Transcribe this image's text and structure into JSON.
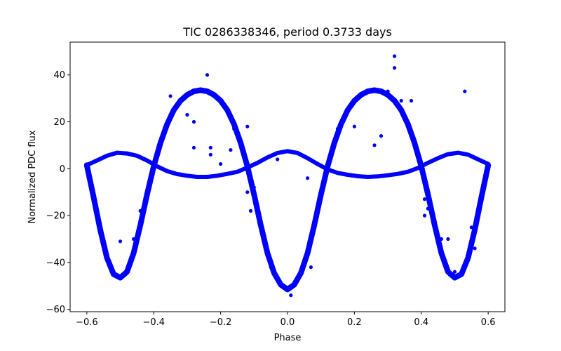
{
  "chart_data": {
    "type": "scatter",
    "title": "TIC 0286338346, period 0.3733 days",
    "xlabel": "Phase",
    "ylabel": "Normalized PDC flux",
    "xlim": [
      -0.65,
      0.65
    ],
    "ylim": [
      -61,
      54
    ],
    "xticks": [
      -0.6,
      -0.4,
      -0.2,
      0.0,
      0.2,
      0.4,
      0.6
    ],
    "xtick_labels": [
      "−0.6",
      "−0.4",
      "−0.2",
      "0.0",
      "0.2",
      "0.4",
      "0.6"
    ],
    "yticks": [
      -60,
      -40,
      -20,
      0,
      20,
      40
    ],
    "ytick_labels": [
      "−60",
      "−40",
      "−20",
      "0",
      "20",
      "40"
    ],
    "grid": false,
    "marker_color": "#0000ff",
    "series": [
      {
        "style": "dense-curve",
        "points": [
          [
            -0.6,
            1.5
          ],
          [
            -0.58,
            -12
          ],
          [
            -0.56,
            -26
          ],
          [
            -0.54,
            -38
          ],
          [
            -0.52,
            -45
          ],
          [
            -0.5,
            -46.5
          ],
          [
            -0.48,
            -44
          ],
          [
            -0.46,
            -36
          ],
          [
            -0.44,
            -24
          ],
          [
            -0.42,
            -11
          ],
          [
            -0.4,
            1
          ],
          [
            -0.38,
            11
          ],
          [
            -0.36,
            19
          ],
          [
            -0.34,
            25
          ],
          [
            -0.32,
            29
          ],
          [
            -0.3,
            31.5
          ],
          [
            -0.28,
            33
          ],
          [
            -0.26,
            33.5
          ],
          [
            -0.24,
            33
          ],
          [
            -0.22,
            31.5
          ],
          [
            -0.2,
            29
          ],
          [
            -0.18,
            25
          ],
          [
            -0.16,
            19
          ],
          [
            -0.14,
            11
          ],
          [
            -0.12,
            1
          ],
          [
            -0.1,
            -11
          ],
          [
            -0.08,
            -24
          ],
          [
            -0.06,
            -36
          ],
          [
            -0.04,
            -44.5
          ],
          [
            -0.02,
            -49.5
          ],
          [
            0.0,
            -51.5
          ],
          [
            0.02,
            -49.5
          ],
          [
            0.04,
            -44.5
          ],
          [
            0.06,
            -36
          ],
          [
            0.08,
            -24
          ],
          [
            0.1,
            -11
          ],
          [
            0.12,
            1
          ],
          [
            0.14,
            11
          ],
          [
            0.16,
            19
          ],
          [
            0.18,
            25
          ],
          [
            0.2,
            29
          ],
          [
            0.22,
            31.5
          ],
          [
            0.24,
            33
          ],
          [
            0.26,
            33.5
          ],
          [
            0.28,
            33
          ],
          [
            0.3,
            31.5
          ],
          [
            0.32,
            29
          ],
          [
            0.34,
            25
          ],
          [
            0.36,
            19
          ],
          [
            0.38,
            11
          ],
          [
            0.4,
            1
          ],
          [
            0.42,
            -11
          ],
          [
            0.44,
            -24
          ],
          [
            0.46,
            -36
          ],
          [
            0.48,
            -44
          ],
          [
            0.5,
            -46.5
          ],
          [
            0.52,
            -45
          ],
          [
            0.54,
            -38
          ],
          [
            0.56,
            -26
          ],
          [
            0.58,
            -12
          ],
          [
            0.6,
            1.5
          ]
        ]
      },
      {
        "style": "dense-curve",
        "points": [
          [
            -0.6,
            1.5
          ],
          [
            -0.57,
            3.5
          ],
          [
            -0.54,
            5.5
          ],
          [
            -0.51,
            6.8
          ],
          [
            -0.48,
            6.5
          ],
          [
            -0.45,
            5.5
          ],
          [
            -0.42,
            3.5
          ],
          [
            -0.39,
            1
          ],
          [
            -0.36,
            -1
          ],
          [
            -0.33,
            -2.3
          ],
          [
            -0.3,
            -3
          ],
          [
            -0.27,
            -3.5
          ],
          [
            -0.24,
            -3.5
          ],
          [
            -0.21,
            -3
          ],
          [
            -0.18,
            -2.2
          ],
          [
            -0.15,
            -1.3
          ],
          [
            -0.12,
            0.5
          ],
          [
            -0.09,
            2.5
          ],
          [
            -0.06,
            4.8
          ],
          [
            -0.03,
            6.7
          ],
          [
            0.0,
            7.5
          ],
          [
            0.03,
            6.7
          ],
          [
            0.06,
            4.5
          ],
          [
            0.09,
            2
          ],
          [
            0.12,
            -0.3
          ],
          [
            0.15,
            -1.8
          ],
          [
            0.18,
            -2.6
          ],
          [
            0.21,
            -3.2
          ],
          [
            0.24,
            -3.5
          ],
          [
            0.27,
            -3.3
          ],
          [
            0.3,
            -2.8
          ],
          [
            0.33,
            -2.2
          ],
          [
            0.36,
            -1.3
          ],
          [
            0.39,
            0.3
          ],
          [
            0.42,
            2.5
          ],
          [
            0.45,
            4.5
          ],
          [
            0.48,
            6.2
          ],
          [
            0.51,
            6.8
          ],
          [
            0.54,
            6
          ],
          [
            0.57,
            4
          ],
          [
            0.6,
            2
          ]
        ]
      },
      {
        "style": "outliers",
        "points": [
          [
            -0.24,
            40
          ],
          [
            -0.35,
            31
          ],
          [
            -0.3,
            23
          ],
          [
            -0.28,
            20
          ],
          [
            -0.28,
            9
          ],
          [
            -0.23,
            9
          ],
          [
            -0.23,
            6
          ],
          [
            -0.16,
            17
          ],
          [
            -0.12,
            18
          ],
          [
            -0.17,
            8
          ],
          [
            -0.2,
            2
          ],
          [
            -0.1,
            -8
          ],
          [
            -0.11,
            -18
          ],
          [
            -0.12,
            -10
          ],
          [
            -0.44,
            -18
          ],
          [
            -0.46,
            -30
          ],
          [
            -0.5,
            -31
          ],
          [
            -0.47,
            -40
          ],
          [
            -0.05,
            -42
          ],
          [
            0.07,
            -42
          ],
          [
            0.01,
            -54
          ],
          [
            -0.03,
            4
          ],
          [
            0.06,
            -4
          ],
          [
            0.15,
            17
          ],
          [
            0.2,
            18
          ],
          [
            0.28,
            14
          ],
          [
            0.26,
            10
          ],
          [
            0.3,
            33
          ],
          [
            0.32,
            43
          ],
          [
            0.32,
            48
          ],
          [
            0.34,
            29
          ],
          [
            0.37,
            29
          ],
          [
            0.41,
            -13
          ],
          [
            0.42,
            -17
          ],
          [
            0.46,
            -30
          ],
          [
            0.48,
            -30
          ],
          [
            0.55,
            -25
          ],
          [
            0.57,
            -20
          ],
          [
            0.56,
            -34
          ],
          [
            0.41,
            -20
          ],
          [
            0.53,
            33
          ],
          [
            0.5,
            -44
          ]
        ]
      }
    ]
  }
}
